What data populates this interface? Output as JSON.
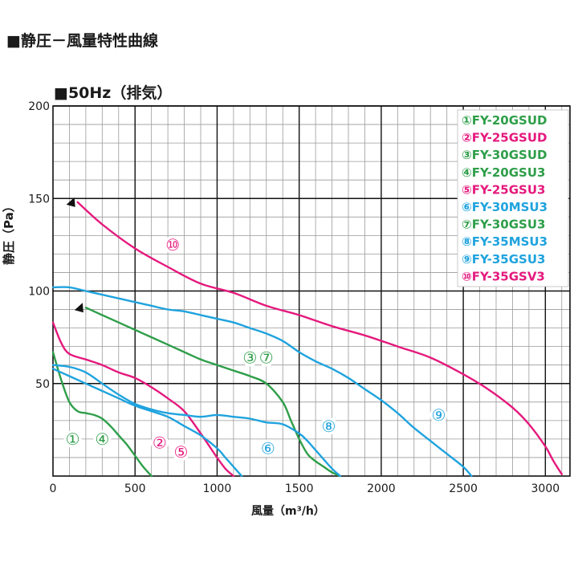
{
  "page_title": "■静圧－風量特性曲線",
  "chart_data": {
    "type": "line",
    "title": "■50Hz（排気）",
    "xlabel": "風量（m³/h）",
    "ylabel": "静圧（Pa）",
    "xlim": [
      0,
      3150
    ],
    "ylim": [
      0,
      200
    ],
    "xticks": [
      0,
      500,
      1000,
      1500,
      2000,
      2500,
      3000
    ],
    "yticks": [
      50,
      100,
      150,
      200
    ],
    "grid": true,
    "legend_position": "top-right",
    "colors": {
      "green": "#2e9e49",
      "pink": "#e5197d",
      "blue": "#1fa3de",
      "grid_minor": "#9a9a9a",
      "grid_major": "#111111"
    },
    "legend": [
      {
        "label": "①FY-20GSUD",
        "color": "green"
      },
      {
        "label": "②FY-25GSUD",
        "color": "pink"
      },
      {
        "label": "③FY-30GSUD",
        "color": "green"
      },
      {
        "label": "④FY-20GSU3",
        "color": "green"
      },
      {
        "label": "⑤FY-25GSU3",
        "color": "pink"
      },
      {
        "label": "⑥FY-30MSU3",
        "color": "blue"
      },
      {
        "label": "⑦FY-30GSU3",
        "color": "green"
      },
      {
        "label": "⑧FY-35MSU3",
        "color": "blue"
      },
      {
        "label": "⑨FY-35GSU3",
        "color": "blue"
      },
      {
        "label": "⑩FY-35GSV3",
        "color": "pink"
      }
    ],
    "series": [
      {
        "label": "①④",
        "color": "green",
        "x": [
          0,
          50,
          100,
          150,
          200,
          250,
          300,
          350,
          400,
          450,
          500,
          550,
          600
        ],
        "y": [
          67,
          52,
          40,
          35,
          34,
          33,
          31,
          27,
          22,
          17,
          11,
          5,
          0
        ]
      },
      {
        "label": "②⑤",
        "color": "pink",
        "x": [
          0,
          50,
          100,
          200,
          300,
          400,
          500,
          600,
          700,
          800,
          900,
          1000,
          1050,
          1100
        ],
        "y": [
          83,
          72,
          66,
          63,
          60,
          56,
          53,
          48,
          42,
          35,
          23,
          10,
          4,
          0
        ]
      },
      {
        "label": "③⑦",
        "color": "green",
        "x": [
          200,
          300,
          400,
          500,
          600,
          700,
          800,
          900,
          1000,
          1100,
          1200,
          1300,
          1400,
          1450,
          1500,
          1550,
          1600,
          1650,
          1700,
          1750
        ],
        "y": [
          91,
          87,
          83,
          79,
          75,
          71,
          67,
          63,
          60,
          57,
          54,
          50,
          40,
          30,
          20,
          12,
          8,
          5,
          2,
          0
        ]
      },
      {
        "label": "⑥",
        "color": "blue",
        "x": [
          0,
          100,
          200,
          300,
          400,
          500,
          600,
          700,
          800,
          900,
          1000,
          1050,
          1100,
          1150
        ],
        "y": [
          58,
          54,
          50,
          46,
          42,
          38,
          35,
          32,
          27,
          22,
          15,
          10,
          5,
          0
        ]
      },
      {
        "label": "⑧",
        "color": "blue",
        "x": [
          0,
          100,
          200,
          300,
          400,
          500,
          600,
          700,
          800,
          900,
          1000,
          1100,
          1200,
          1300,
          1400,
          1500,
          1550,
          1600,
          1650,
          1700,
          1750
        ],
        "y": [
          60,
          59,
          56,
          50,
          44,
          39,
          36,
          34,
          33,
          32,
          33,
          32,
          31,
          29,
          28,
          23,
          19,
          14,
          9,
          4,
          0
        ]
      },
      {
        "label": "⑨",
        "color": "blue",
        "x": [
          0,
          100,
          200,
          300,
          400,
          500,
          600,
          700,
          800,
          900,
          1000,
          1100,
          1200,
          1300,
          1400,
          1500,
          1600,
          1700,
          1800,
          1900,
          2000,
          2100,
          2200,
          2300,
          2400,
          2500,
          2550
        ],
        "y": [
          102,
          102,
          100,
          98,
          96,
          94,
          92,
          90,
          89,
          87,
          85,
          83,
          80,
          77,
          73,
          67,
          62,
          58,
          53,
          47,
          41,
          34,
          26,
          19,
          12,
          5,
          0
        ]
      },
      {
        "label": "⑩",
        "color": "pink",
        "x": [
          150,
          300,
          500,
          700,
          900,
          1100,
          1300,
          1500,
          1700,
          1900,
          2100,
          2300,
          2500,
          2650,
          2800,
          2900,
          3000,
          3050,
          3100
        ],
        "y": [
          148,
          136,
          123,
          113,
          104,
          99,
          92,
          87,
          81,
          76,
          70,
          64,
          55,
          47,
          37,
          28,
          16,
          8,
          1
        ]
      }
    ],
    "annotations": [
      {
        "text": "⑩",
        "color": "pink",
        "x": 730,
        "y": 125
      },
      {
        "text": "③",
        "color": "green",
        "x": 1200,
        "y": 64
      },
      {
        "text": "⑦",
        "color": "green",
        "x": 1300,
        "y": 64
      },
      {
        "text": "⑨",
        "color": "blue",
        "x": 2350,
        "y": 33
      },
      {
        "text": "⑧",
        "color": "blue",
        "x": 1680,
        "y": 27
      },
      {
        "text": "⑥",
        "color": "blue",
        "x": 1310,
        "y": 15
      },
      {
        "text": "①",
        "color": "green",
        "x": 120,
        "y": 20
      },
      {
        "text": "④",
        "color": "green",
        "x": 300,
        "y": 20
      },
      {
        "text": "②",
        "color": "pink",
        "x": 650,
        "y": 18
      },
      {
        "text": "⑤",
        "color": "pink",
        "x": 780,
        "y": 13
      }
    ]
  }
}
